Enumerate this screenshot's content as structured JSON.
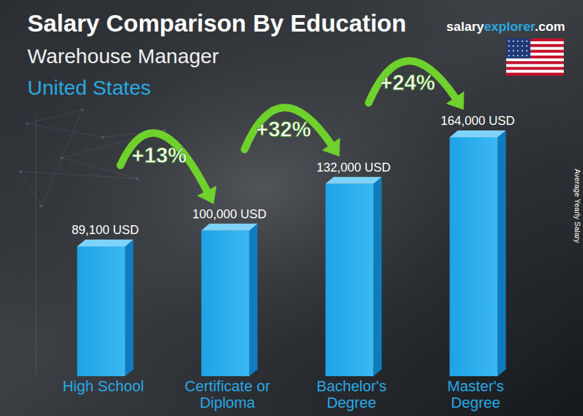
{
  "chart_data": {
    "type": "bar",
    "title": "Salary Comparison By Education",
    "subtitle": [
      "Warehouse Manager",
      "United States"
    ],
    "source": [
      "salary",
      "explorer",
      ".com"
    ],
    "y_label": "Average Yearly Salary",
    "categories": [
      "High School",
      "Certificate or Diploma",
      "Bachelor's Degree",
      "Master's Degree"
    ],
    "values": [
      89100,
      100000,
      132000,
      164000
    ],
    "value_labels": [
      "89,100 USD",
      "100,000 USD",
      "132,000 USD",
      "164,000 USD"
    ],
    "annotations": [
      "+13%",
      "+32%",
      "+24%"
    ],
    "color": "#1ea3e6",
    "ylim": [
      0,
      180000
    ],
    "data_labels": true,
    "tick_labels": "x",
    "grid": false
  }
}
